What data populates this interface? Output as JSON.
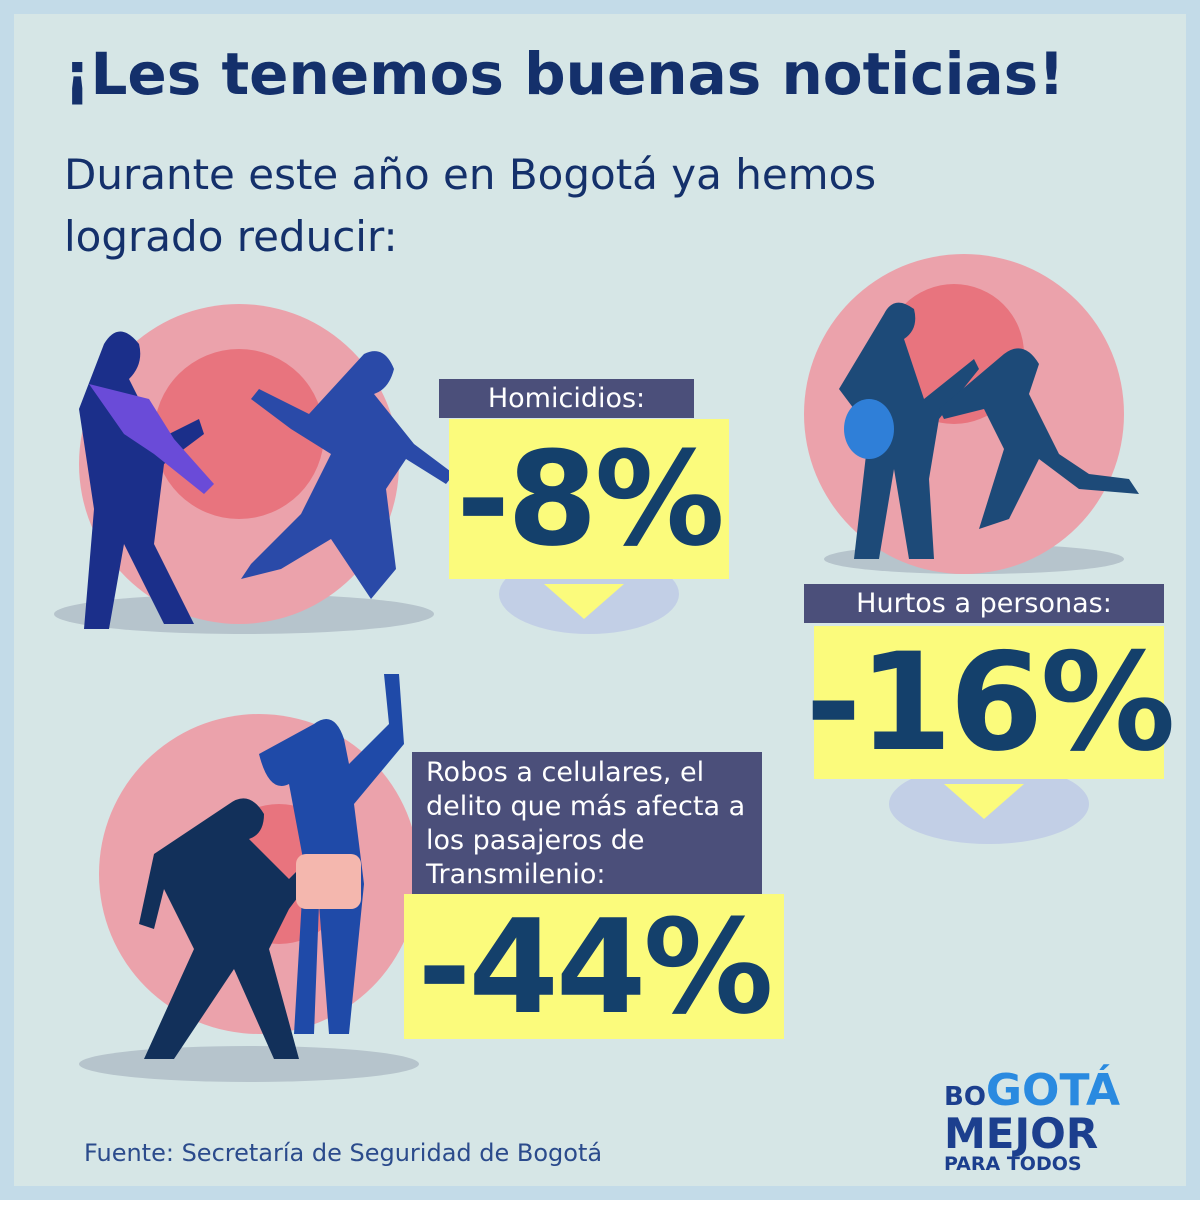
{
  "header": {
    "title": "¡Les tenemos buenas noticias!",
    "subtitle": "Durante este año en Bogotá ya hemos logrado reducir:"
  },
  "stats": [
    {
      "label": "Homicidios:",
      "value": "-8%"
    },
    {
      "label": "Hurtos a personas:",
      "value": "-16%"
    },
    {
      "label": "Robos a celulares, el delito que más afecta a los pasajeros de Transmilenio:",
      "value": "-44%"
    }
  ],
  "source": "Fuente: Secretaría de Seguridad de Bogotá",
  "logo": {
    "top_small": "BO",
    "top_big": "GOTÁ",
    "middle": "MEJOR",
    "bottom": "PARA TODOS"
  }
}
